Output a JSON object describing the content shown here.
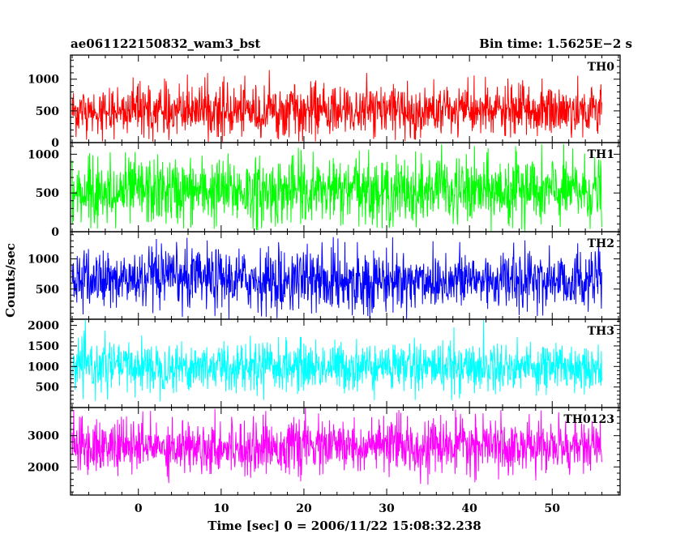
{
  "chart_data": {
    "type": "line",
    "title": "ae061122150832_wam3_bst",
    "subtitle": "Bin time: 1.5625E−2 s",
    "xlabel": "Time [sec] 0 = 2006/11/22 15:08:32.238",
    "ylabel": "Counts/sec",
    "xlim": [
      -8.2,
      58.2
    ],
    "x_range": [
      -8,
      56
    ],
    "x_ticks": [
      0,
      10,
      20,
      30,
      40,
      50
    ],
    "x_tick_labels": [
      "0",
      "10",
      "20",
      "30",
      "40",
      "50"
    ],
    "x_minor_step": 2,
    "bin_time": 0.015625,
    "grid": false,
    "series": [
      {
        "name": "TH0",
        "color": "#ff0000",
        "ylim": [
          0,
          1380
        ],
        "mean": 500,
        "std": 200,
        "max": 1350,
        "min": 0,
        "y_ticks": [
          0,
          500,
          1000
        ],
        "y_tick_labels": [
          "0",
          "500",
          "1000"
        ],
        "y_minor_step": 100
      },
      {
        "name": "TH1",
        "color": "#00ff00",
        "ylim": [
          0,
          1150
        ],
        "mean": 520,
        "std": 215,
        "max": 1130,
        "min": 0,
        "y_ticks": [
          0,
          500,
          1000
        ],
        "y_tick_labels": [
          "0",
          "500",
          "1000"
        ],
        "y_minor_step": 100
      },
      {
        "name": "TH2",
        "color": "#0000ff",
        "ylim": [
          0,
          1450
        ],
        "mean": 650,
        "std": 250,
        "max": 1440,
        "min": 0,
        "y_ticks": [
          500,
          1000
        ],
        "y_tick_labels": [
          "500",
          "1000"
        ],
        "y_minor_step": 100
      },
      {
        "name": "TH3",
        "color": "#00ffff",
        "ylim": [
          0,
          2150
        ],
        "mean": 1000,
        "std": 300,
        "max": 2150,
        "min": 150,
        "y_ticks": [
          500,
          1000,
          1500,
          2000
        ],
        "y_tick_labels": [
          "500",
          "1000",
          "1500",
          "2000"
        ],
        "y_minor_step": 100
      },
      {
        "name": "TH0123",
        "color": "#ff00ff",
        "ylim": [
          1100,
          3900
        ],
        "mean": 2650,
        "std": 420,
        "max": 3900,
        "min": 1100,
        "y_ticks": [
          2000,
          3000
        ],
        "y_tick_labels": [
          "2000",
          "3000"
        ],
        "y_minor_step": 200
      }
    ]
  }
}
